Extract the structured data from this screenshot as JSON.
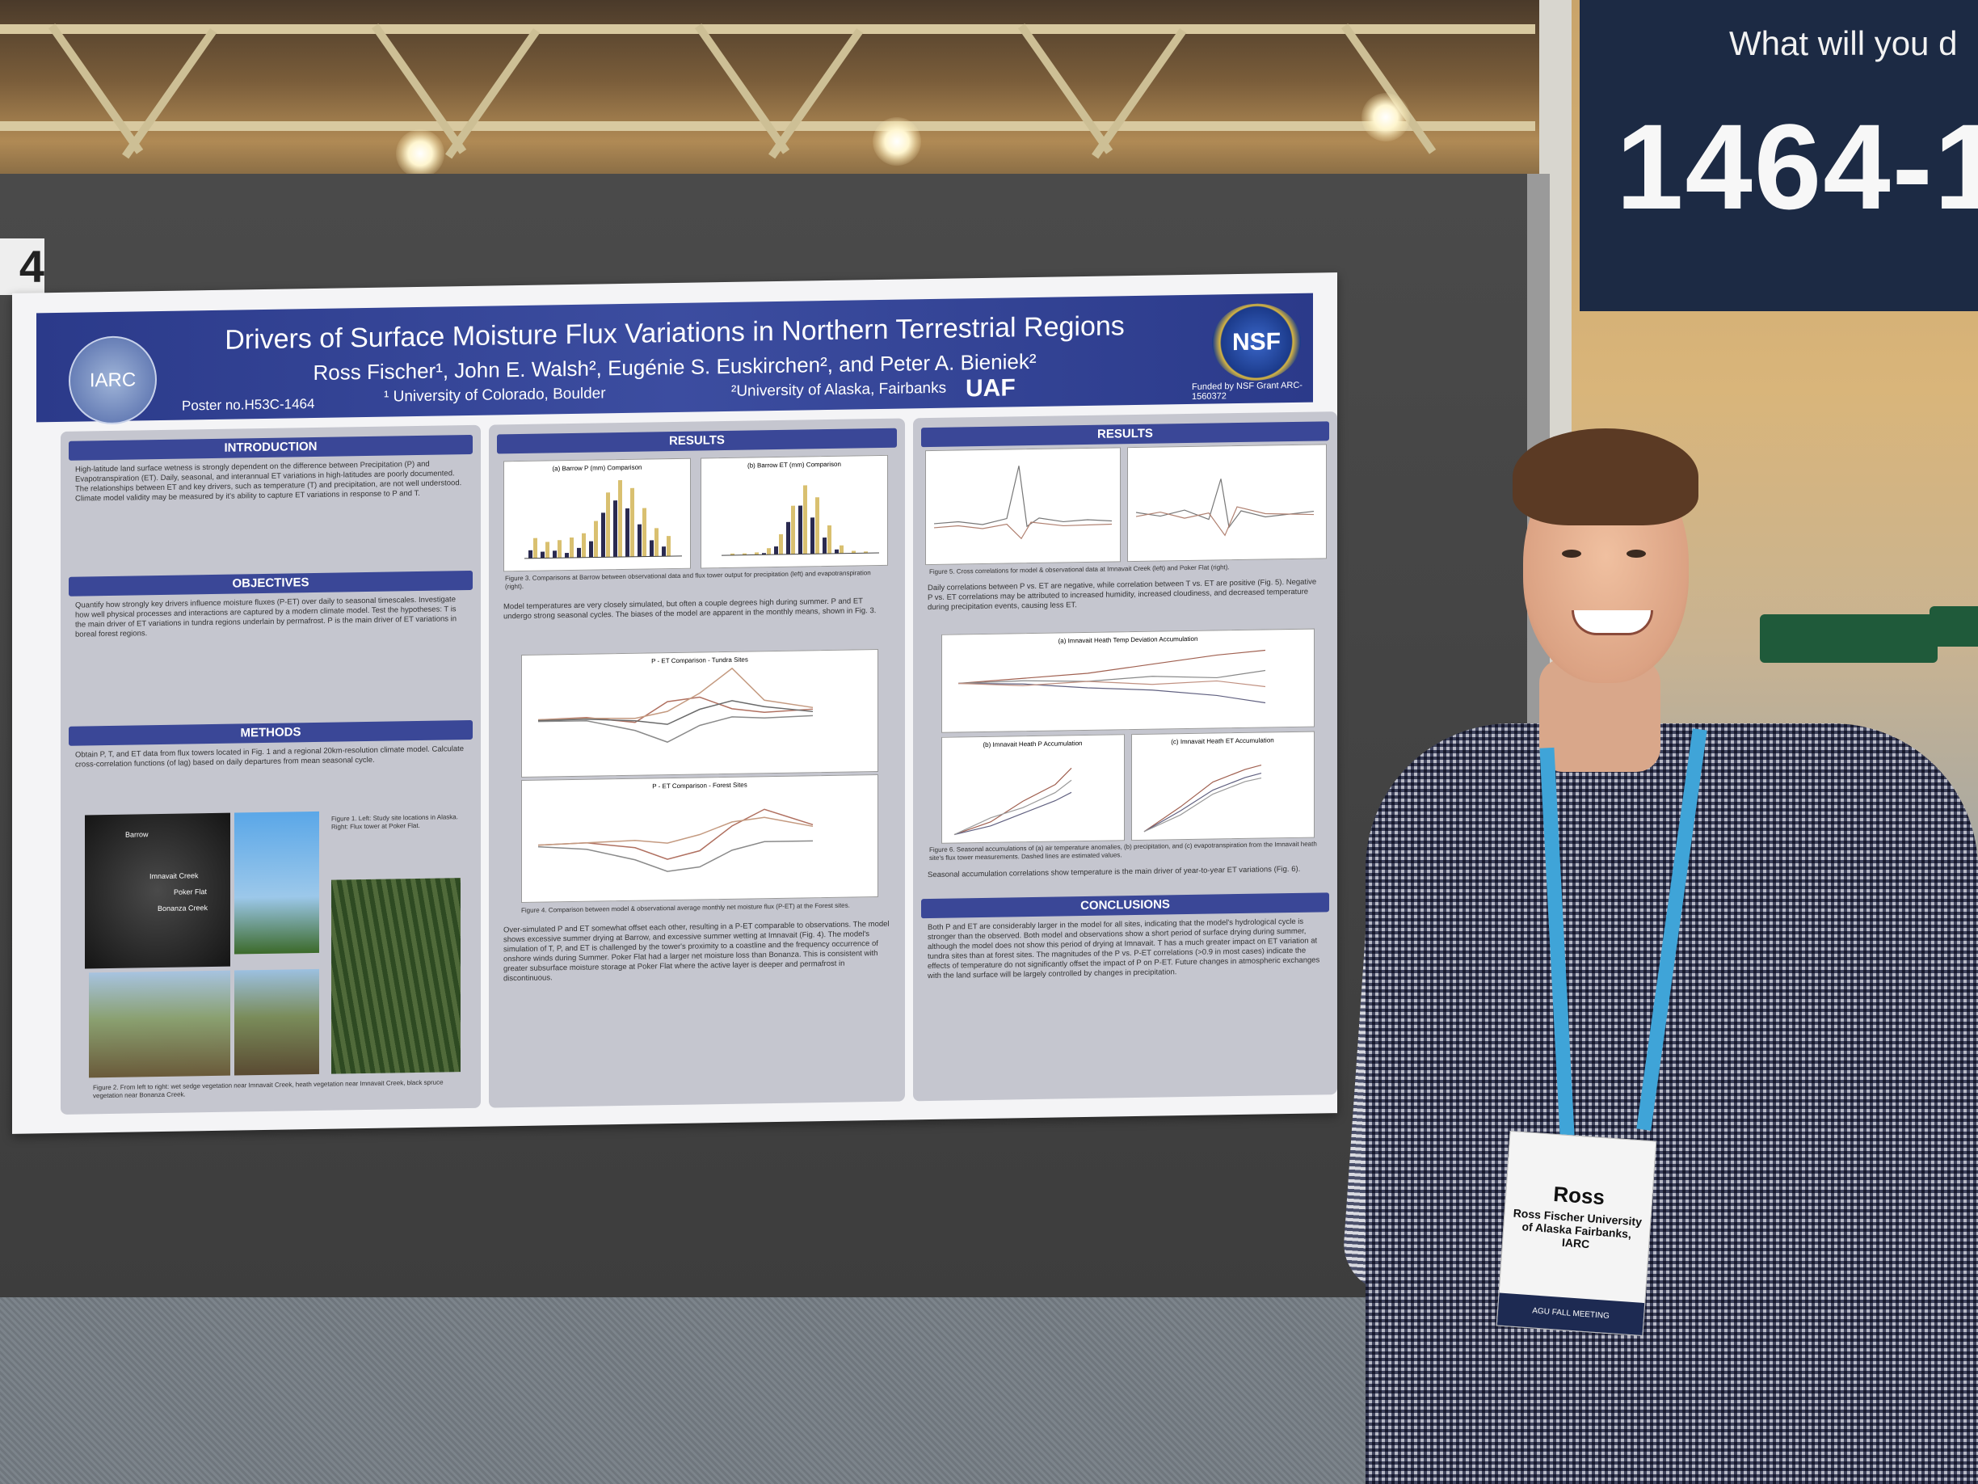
{
  "scene": "Person posing next to a conference research poster",
  "booth": {
    "number_fragment": "4"
  },
  "banner": {
    "top_text": "What will you d",
    "number": "1464-1"
  },
  "poster": {
    "title": "Drivers of Surface Moisture Flux Variations in Northern Terrestrial Regions",
    "authors": "Ross Fischer¹, John E. Walsh², Eugénie S. Euskirchen², and Peter A. Bieniek²",
    "poster_no": "Poster no.H53C-1464",
    "affil_1": "¹ University of Colorado, Boulder",
    "affil_2": "²University of Alaska, Fairbanks",
    "uaf": "UAF",
    "funded": "Funded by NSF Grant ARC-1560372",
    "logo_left": "IARC",
    "logo_right": "NSF",
    "sections": {
      "introduction": "INTRODUCTION",
      "objectives": "OBJECTIVES",
      "methods": "METHODS",
      "results": "RESULTS",
      "results2": "RESULTS",
      "conclusions": "CONCLUSIONS"
    },
    "intro_text": "High-latitude land surface wetness is strongly dependent on the difference between Precipitation (P) and Evapotranspiration (ET). Daily, seasonal, and interannual ET variations in high-latitudes are poorly documented. The relationships between ET and key drivers, such as temperature (T) and precipitation, are not well understood. Climate model validity may be measured by it's ability to capture ET variations in response to P and T.",
    "objectives_text": "Quantify how strongly key drivers influence moisture fluxes (P-ET) over daily to seasonal timescales. Investigate how well physical processes and interactions are captured by a modern climate model. Test the hypotheses: T is the main driver of ET variations in tundra regions underlain by permafrost. P is the main driver of ET variations in boreal forest regions.",
    "methods_text": "Obtain P, T, and ET data from flux towers located in Fig. 1 and a regional 20km-resolution climate model. Calculate cross-correlation functions (of lag) based on daily departures from mean seasonal cycle.",
    "results_text": "Model temperatures are very closely simulated, but often a couple degrees high during summer. P and ET undergo strong seasonal cycles. The biases of the model are apparent in the monthly means, shown in Fig. 3.",
    "results_text2": "Over-simulated P and ET somewhat offset each other, resulting in a P-ET comparable to observations. The model shows excessive summer drying at Barrow, and excessive summer wetting at Imnavait (Fig. 4). The model's simulation of T, P, and ET is challenged by the tower's proximity to a coastline and the frequency occurrence of onshore winds during Summer. Poker Flat had a larger net moisture loss than Bonanza. This is consistent with greater subsurface moisture storage at Poker Flat where the active layer is deeper and permafrost in discontinuous.",
    "results3_text": "Daily correlations between P vs. ET are negative, while correlation between T vs. ET are positive (Fig. 5). Negative P vs. ET correlations may be attributed to increased humidity, increased cloudiness, and decreased temperature during precipitation events, causing less ET.",
    "results3_text2": "Seasonal accumulation correlations show temperature is the main driver of year-to-year ET variations (Fig. 6).",
    "conclusions_text": "Both P and ET are considerably larger in the model for all sites, indicating that the model's hydrological cycle is stronger than the observed. Both model and observations show a short period of surface drying during summer, although the model does not show this period of drying at Imnavait. T has a much greater impact on ET variation at tundra sites than at forest sites. The magnitudes of the P vs. P-ET correlations (>0.9 in most cases) indicate the effects of temperature do not significantly offset the impact of P on P-ET. Future changes in atmospheric exchanges with the land surface will be largely controlled by changes in precipitation.",
    "fig1_cap": "Figure 1. Left: Study site locations in Alaska. Right: Flux tower at Poker Flat.",
    "fig2_cap": "Figure 2. From left to right: wet sedge vegetation near Imnavait Creek, heath vegetation near Imnavait Creek, black spruce vegetation near Bonanza Creek.",
    "fig3_cap": "Figure 3. Comparisons at Barrow between observational data and flux tower output for precipitation (left) and evapotranspiration (right).",
    "fig4_cap": "Figure 4. Comparison between model & observational average monthly net moisture flux (P-ET) at the Forest sites.",
    "fig5_cap": "Figure 5. Cross correlations for model & observational data at Imnavait Creek (left) and Poker Flat (right).",
    "fig6_cap": "Figure 6. Seasonal accumulations of (a) air temperature anomalies, (b) precipitation, and (c) evapotranspiration from the Imnavait heath site's flux tower measurements. Dashed lines are estimated values.",
    "chart_titles": {
      "barrow_p": "(a) Barrow P (mm) Comparison",
      "barrow_et": "(b) Barrow ET (mm) Comparison",
      "tundra": "P - ET Comparison - Tundra Sites",
      "forest": "P - ET Comparison - Forest Sites",
      "imnavait_heath": "(a) Imnavait Heath Temp Deviation Accumulation",
      "imnavait_p": "(b) Imnavait Heath P Accumulation",
      "imnavait_et": "(c) Imnavait Heath ET Accumulation",
      "map_labels": [
        "Barrow",
        "Imnavait Creek",
        "Poker Flat",
        "Bonanza Creek"
      ]
    }
  },
  "badge": {
    "name": "Ross",
    "sub": "Ross Fischer University of Alaska Fairbanks, IARC",
    "foot": "AGU FALL MEETING"
  },
  "colors": {
    "poster_header": "#2b3a8a",
    "lanyard": "#3fa4d8",
    "banner": "#1c2a44"
  }
}
